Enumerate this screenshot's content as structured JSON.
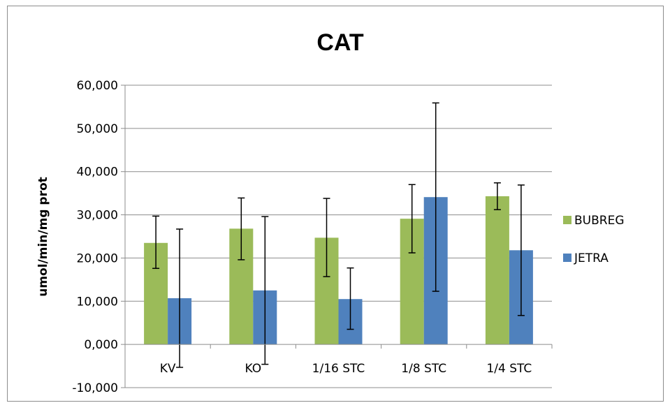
{
  "chart_data": {
    "type": "bar",
    "title": "CAT",
    "xlabel": "",
    "ylabel": "umol/min/mg prot",
    "ylim": [
      -10,
      60
    ],
    "yticks": [
      "-10,000",
      "0,000",
      "10,000",
      "20,000",
      "30,000",
      "40,000",
      "50,000",
      "60,000"
    ],
    "ytick_values": [
      -10,
      0,
      10,
      20,
      30,
      40,
      50,
      60
    ],
    "grid": true,
    "legend_position": "right",
    "categories": [
      "KV",
      "KO",
      "1/16 STC",
      "1/8 STC",
      "1/4 STC"
    ],
    "series": [
      {
        "name": "BUBREG",
        "color": "#9bbb59",
        "values": [
          23.5,
          26.8,
          24.7,
          29.1,
          34.3
        ],
        "err_low": [
          17.6,
          19.6,
          15.7,
          21.2,
          31.2
        ],
        "err_high": [
          29.7,
          33.9,
          33.8,
          37.0,
          37.4
        ]
      },
      {
        "name": "JETRA",
        "color": "#4f81bd",
        "values": [
          10.7,
          12.5,
          10.5,
          34.1,
          21.8
        ],
        "err_low": [
          -5.3,
          -4.6,
          3.5,
          12.3,
          6.7
        ],
        "err_high": [
          26.7,
          29.6,
          17.7,
          55.9,
          36.9
        ]
      }
    ]
  }
}
